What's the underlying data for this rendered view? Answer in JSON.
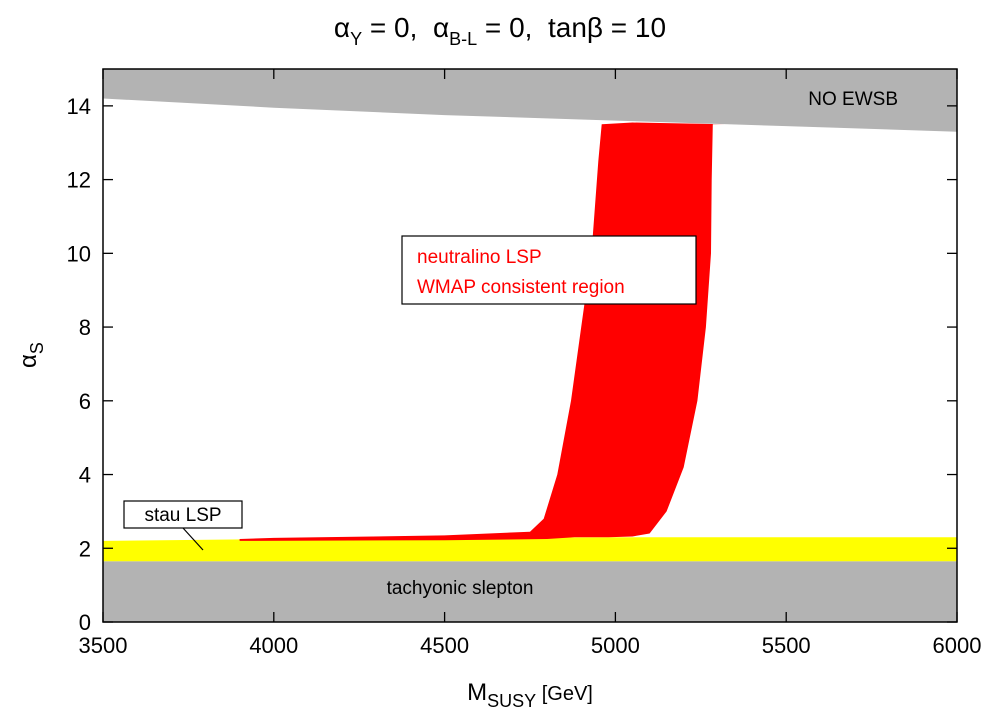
{
  "chart_data": {
    "type": "area",
    "title": {
      "alpha_y": "α",
      "alpha_y_sub": "Y",
      "alpha_y_val": " = 0,  ",
      "alpha_bl": "α",
      "alpha_bl_sub": "B-L",
      "alpha_bl_val": " = 0,  ",
      "tanbeta": "tanβ = 10"
    },
    "xlabel": {
      "main": "M",
      "sub": "SUSY",
      "unit": " [GeV]"
    },
    "ylabel": {
      "main": "α",
      "sub": "S"
    },
    "xlim": [
      3500,
      6000
    ],
    "ylim": [
      0,
      15
    ],
    "xticks": [
      3500,
      4000,
      4500,
      5000,
      5500,
      6000
    ],
    "yticks": [
      0,
      2,
      4,
      6,
      8,
      10,
      12,
      14
    ],
    "grid": false,
    "regions": [
      {
        "name": "NO EWSB",
        "color": "#b3b3b3",
        "boundary": [
          [
            3500,
            15
          ],
          [
            6000,
            15
          ],
          [
            6000,
            13.3
          ],
          [
            5500,
            13.45
          ],
          [
            5000,
            13.6
          ],
          [
            4500,
            13.75
          ],
          [
            4000,
            13.95
          ],
          [
            3500,
            14.2
          ]
        ]
      },
      {
        "name": "tachyonic slepton",
        "color": "#b3b3b3",
        "boundary": [
          [
            3500,
            0
          ],
          [
            6000,
            0
          ],
          [
            6000,
            1.65
          ],
          [
            3500,
            1.65
          ]
        ]
      },
      {
        "name": "stau LSP",
        "color": "#ffff00",
        "boundary": [
          [
            3500,
            1.65
          ],
          [
            6000,
            1.65
          ],
          [
            6000,
            2.3
          ],
          [
            5000,
            2.3
          ],
          [
            4500,
            2.28
          ],
          [
            4000,
            2.25
          ],
          [
            3500,
            2.2
          ]
        ]
      },
      {
        "name": "neutralino LSP\nWMAP consistent region",
        "color": "#ff0000",
        "boundary": [
          [
            3900,
            2.2
          ],
          [
            4500,
            2.22
          ],
          [
            4800,
            2.25
          ],
          [
            4880,
            2.3
          ],
          [
            4980,
            2.3
          ],
          [
            5050,
            2.32
          ],
          [
            5100,
            2.4
          ],
          [
            5150,
            3.0
          ],
          [
            5200,
            4.2
          ],
          [
            5240,
            6.0
          ],
          [
            5265,
            8.0
          ],
          [
            5280,
            10.0
          ],
          [
            5282,
            12.0
          ],
          [
            5285,
            13.5
          ],
          [
            5320,
            13.5
          ],
          [
            5050,
            13.55
          ],
          [
            4960,
            13.5
          ],
          [
            4950,
            12.5
          ],
          [
            4930,
            10.0
          ],
          [
            4900,
            8.0
          ],
          [
            4870,
            6.0
          ],
          [
            4830,
            4.0
          ],
          [
            4790,
            2.8
          ],
          [
            4750,
            2.45
          ],
          [
            4500,
            2.35
          ],
          [
            4000,
            2.28
          ],
          [
            3900,
            2.25
          ]
        ]
      }
    ],
    "labels": {
      "no_ewsb": "NO EWSB",
      "tachyonic": "tachyonic slepton",
      "stau": "stau LSP",
      "neutralino_line1": "neutralino LSP",
      "neutralino_line2": "WMAP consistent region"
    },
    "colors": {
      "gray": "#b3b3b3",
      "yellow": "#ffff00",
      "red": "#ff0000"
    }
  }
}
